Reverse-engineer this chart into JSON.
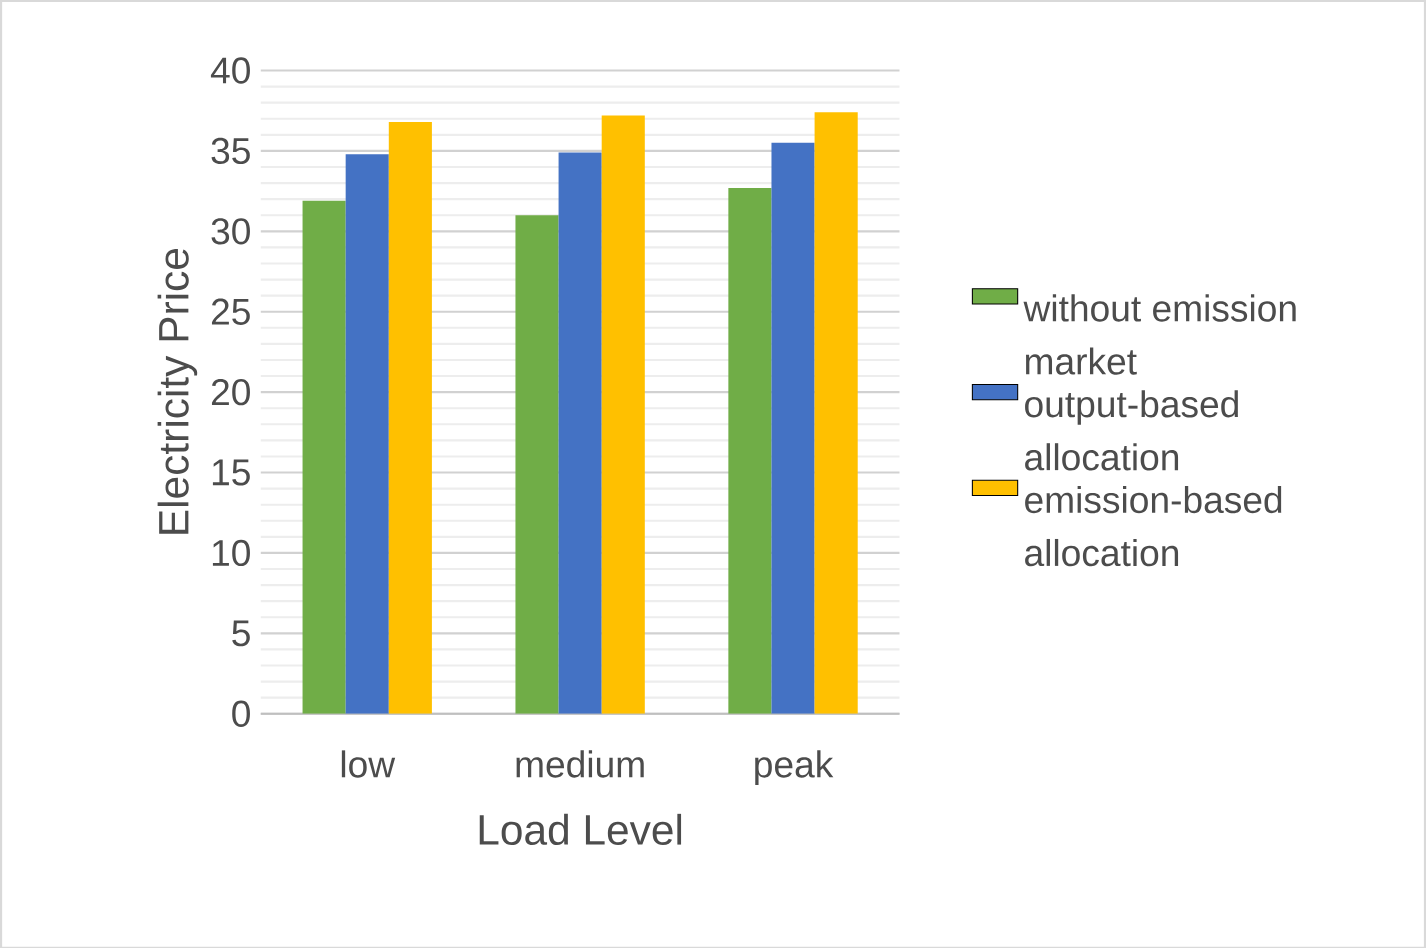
{
  "chart_data": {
    "type": "bar",
    "xlabel": "Load Level",
    "ylabel": "Electricity Price",
    "categories": [
      "low",
      "medium",
      "peak"
    ],
    "series": [
      {
        "name": "without emission market",
        "color": "#70ad47",
        "values": [
          31.9,
          31.0,
          32.7
        ]
      },
      {
        "name": "output-based allocation",
        "color": "#4472c4",
        "values": [
          34.8,
          34.9,
          35.5
        ]
      },
      {
        "name": "emission-based allocation",
        "color": "#ffc000",
        "values": [
          36.8,
          37.2,
          37.4
        ]
      }
    ],
    "ylim": [
      0,
      40
    ],
    "yticks": [
      0,
      5,
      10,
      15,
      20,
      25,
      30,
      35,
      40
    ],
    "grid": "y",
    "legend": "right"
  }
}
